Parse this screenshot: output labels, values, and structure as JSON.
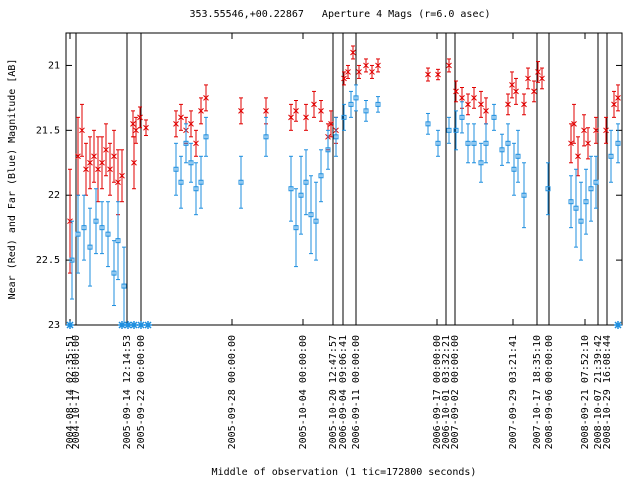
{
  "chart_data": {
    "type": "errorbar-scatter",
    "title": "353.55546,+00.22867   Aperture 4 Mags (r=6.0 asec)",
    "x_label": "Middle of observation (1 tic=172800 seconds)",
    "y_label": "Near (Red) and Far (Blue) Magnitude [AB]",
    "xlim": [
      0,
      556
    ],
    "ylim": [
      20.75,
      23
    ],
    "yticks": [
      21,
      21.5,
      22,
      22.5,
      23
    ],
    "xticks": [
      {
        "value": 4,
        "label": "2004-08-14 02:35:51"
      },
      {
        "value": 10,
        "label": "2004-10-17 00:00:00"
      },
      {
        "value": 61,
        "label": "2005-09-14 12:14:53"
      },
      {
        "value": 75,
        "label": "2005-09-22 00:00:00"
      },
      {
        "value": 166,
        "label": "2005-09-28 00:00:00"
      },
      {
        "value": 237,
        "label": "2005-10-04 00:00:00"
      },
      {
        "value": 267,
        "label": "2005-10-20 12:47:57"
      },
      {
        "value": 277,
        "label": "2006-09-04 09:06:41"
      },
      {
        "value": 290,
        "label": "2006-09-11 00:00:00"
      },
      {
        "value": 371,
        "label": "2006-09-17 00:00:00"
      },
      {
        "value": 380,
        "label": "2006-10-01 03:32:21"
      },
      {
        "value": 389,
        "label": "2007-09-02 00:00:00"
      },
      {
        "value": 447,
        "label": "2007-09-29 03:21:41"
      },
      {
        "value": 471,
        "label": "2007-10-17 18:35:10"
      },
      {
        "value": 483,
        "label": "2008-09-06 00:00:00"
      },
      {
        "value": 519,
        "label": "2008-09-21 07:52:10"
      },
      {
        "value": 532,
        "label": "2008-10-07 21:39:42"
      },
      {
        "value": 541,
        "label": "2008-10-29 16:08:44"
      }
    ],
    "vlines": [
      10,
      61,
      75,
      267,
      277,
      290,
      380,
      389,
      471,
      483,
      532,
      541
    ],
    "series": [
      {
        "color": "#e00000",
        "marker": "x",
        "x": [
          4,
          12,
          16,
          20,
          24,
          28,
          32,
          36,
          40,
          44,
          48,
          52,
          56,
          67,
          68,
          70,
          74,
          80,
          110,
          115,
          120,
          125,
          130,
          135,
          140,
          175,
          200,
          225,
          230,
          240,
          248,
          255,
          262,
          265,
          270,
          278,
          282,
          287,
          293,
          300,
          306,
          312,
          362,
          372,
          383,
          390,
          396,
          402,
          408,
          415,
          420,
          442,
          446,
          450,
          458,
          462,
          468,
          472,
          476,
          505,
          508,
          512,
          518,
          522,
          530,
          540,
          548,
          552
        ],
        "values": [
          22.2,
          21.7,
          21.5,
          21.8,
          21.75,
          21.7,
          21.8,
          21.75,
          21.65,
          21.8,
          21.7,
          21.9,
          21.85,
          21.45,
          21.75,
          21.5,
          21.4,
          21.48,
          21.45,
          21.4,
          21.5,
          21.45,
          21.6,
          21.35,
          21.25,
          21.35,
          21.35,
          21.4,
          21.35,
          21.4,
          21.3,
          21.35,
          21.55,
          21.45,
          21.5,
          21.1,
          21.05,
          20.9,
          21.05,
          21.0,
          21.05,
          21.0,
          21.07,
          21.07,
          21.0,
          21.2,
          21.25,
          21.3,
          21.25,
          21.3,
          21.35,
          21.3,
          21.15,
          21.2,
          21.3,
          21.1,
          21.2,
          21.05,
          21.1,
          21.6,
          21.45,
          21.7,
          21.5,
          21.6,
          21.5,
          21.5,
          21.3,
          21.25
        ],
        "errors": [
          0.4,
          0.3,
          0.2,
          0.2,
          0.2,
          0.2,
          0.25,
          0.2,
          0.2,
          0.2,
          0.2,
          0.25,
          0.2,
          0.1,
          0.2,
          0.1,
          0.08,
          0.06,
          0.1,
          0.1,
          0.1,
          0.1,
          0.1,
          0.1,
          0.1,
          0.1,
          0.1,
          0.1,
          0.08,
          0.1,
          0.1,
          0.08,
          0.1,
          0.1,
          0.1,
          0.05,
          0.05,
          0.05,
          0.05,
          0.05,
          0.05,
          0.05,
          0.05,
          0.04,
          0.05,
          0.08,
          0.08,
          0.08,
          0.08,
          0.1,
          0.1,
          0.08,
          0.1,
          0.1,
          0.08,
          0.08,
          0.08,
          0.08,
          0.08,
          0.15,
          0.15,
          0.15,
          0.12,
          0.12,
          0.1,
          0.1,
          0.1,
          0.1
        ]
      },
      {
        "color": "#1f8fdf",
        "marker": "square",
        "x": [
          6,
          12,
          18,
          24,
          30,
          36,
          42,
          48,
          52,
          58,
          110,
          115,
          120,
          125,
          130,
          135,
          140,
          175,
          200,
          225,
          230,
          235,
          240,
          245,
          250,
          255,
          262,
          270,
          278,
          285,
          290,
          300,
          312,
          362,
          372,
          383,
          390,
          396,
          402,
          408,
          415,
          420,
          428,
          436,
          442,
          448,
          452,
          458,
          482,
          505,
          510,
          515,
          520,
          525,
          530,
          545,
          552
        ],
        "values": [
          22.5,
          22.3,
          22.25,
          22.4,
          22.2,
          22.25,
          22.3,
          22.6,
          22.35,
          22.7,
          21.8,
          21.9,
          21.6,
          21.75,
          21.95,
          21.9,
          21.55,
          21.9,
          21.55,
          21.95,
          22.25,
          22.0,
          21.9,
          22.15,
          22.2,
          21.85,
          21.65,
          21.55,
          21.4,
          21.3,
          21.25,
          21.35,
          21.3,
          21.45,
          21.6,
          21.5,
          21.5,
          21.4,
          21.6,
          21.6,
          21.75,
          21.6,
          21.4,
          21.65,
          21.6,
          21.8,
          21.7,
          22.0,
          21.95,
          22.05,
          22.1,
          22.2,
          22.05,
          21.95,
          21.9,
          21.7,
          21.6
        ],
        "errors": [
          0.3,
          0.3,
          0.25,
          0.3,
          0.25,
          0.2,
          0.25,
          0.25,
          0.3,
          0.3,
          0.2,
          0.2,
          0.15,
          0.15,
          0.2,
          0.2,
          0.15,
          0.2,
          0.15,
          0.25,
          0.3,
          0.3,
          0.25,
          0.3,
          0.3,
          0.2,
          0.15,
          0.15,
          0.1,
          0.1,
          0.1,
          0.08,
          0.06,
          0.08,
          0.1,
          0.1,
          0.15,
          0.12,
          0.15,
          0.15,
          0.15,
          0.15,
          0.1,
          0.12,
          0.15,
          0.2,
          0.2,
          0.25,
          0.2,
          0.2,
          0.3,
          0.3,
          0.25,
          0.25,
          0.2,
          0.2,
          0.15
        ]
      },
      {
        "color": "#1f8fdf",
        "marker": "star",
        "x": [
          4,
          56,
          62,
          68,
          75,
          82,
          552
        ],
        "values": [
          23,
          23,
          23,
          23,
          23,
          23,
          23
        ]
      }
    ]
  }
}
